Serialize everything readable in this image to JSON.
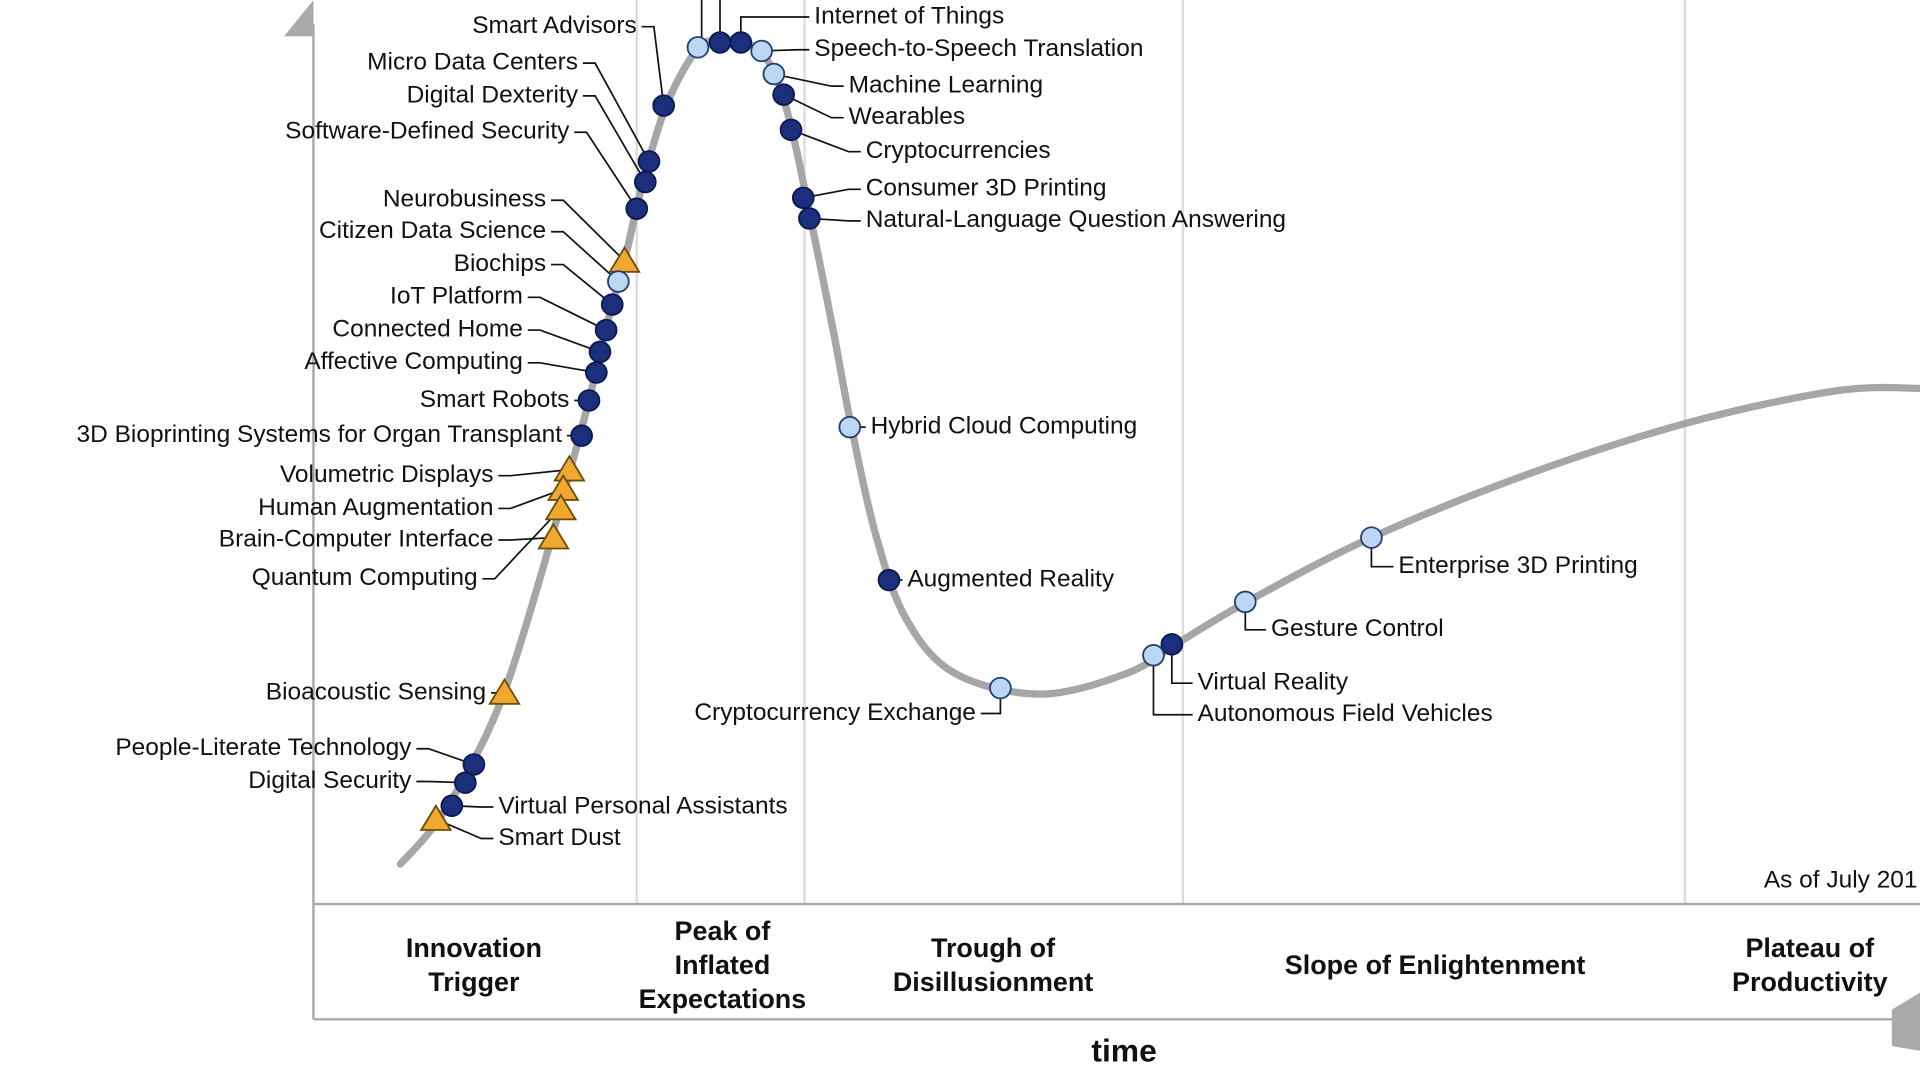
{
  "items": [
    {
      "label": "Internet of Things"
    },
    {
      "label": "Speech-to-Speech Translation"
    },
    {
      "label": "Machine Learning"
    },
    {
      "label": "Wearables"
    },
    {
      "label": "Cryptocurrencies"
    },
    {
      "label": "Consumer 3D Printing"
    },
    {
      "label": "Natural-Language Question Answering"
    },
    {
      "label": "Hybrid Cloud Computing"
    },
    {
      "label": "Augmented Reality"
    },
    {
      "label": "Cryptocurrency Exchange"
    },
    {
      "label": "Virtual Reality"
    },
    {
      "label": "Autonomous Field Vehicles"
    },
    {
      "label": "Gesture Control"
    },
    {
      "label": "Enterprise 3D Printing"
    },
    {
      "label": "Virtual Personal Assistants"
    },
    {
      "label": "Smart Dust"
    },
    {
      "label": "Smart Advisors"
    },
    {
      "label": "Micro Data Centers"
    },
    {
      "label": "Digital Dexterity"
    },
    {
      "label": "Software-Defined Security"
    },
    {
      "label": "Neurobusiness"
    },
    {
      "label": "Citizen Data Science"
    },
    {
      "label": "Biochips"
    },
    {
      "label": "IoT Platform"
    },
    {
      "label": "Connected Home"
    },
    {
      "label": "Affective Computing"
    },
    {
      "label": "Smart Robots"
    },
    {
      "label": "3D Bioprinting Systems for Organ Transplant"
    },
    {
      "label": "Volumetric Displays"
    },
    {
      "label": "Human Augmentation"
    },
    {
      "label": "Brain-Computer Interface"
    },
    {
      "label": "Quantum Computing"
    },
    {
      "label": "Bioacoustic Sensing"
    },
    {
      "label": "People-Literate Technology"
    },
    {
      "label": "Digital Security"
    }
  ],
  "phases": [
    {
      "lines": [
        "Innovation",
        "Trigger"
      ]
    },
    {
      "lines": [
        "Peak of",
        "Inflated",
        "Expectations"
      ]
    },
    {
      "lines": [
        "Trough of",
        "Disillusionment"
      ]
    },
    {
      "lines": [
        "Slope of Enlightenment"
      ]
    },
    {
      "lines": [
        "Plateau of",
        "Productivity"
      ]
    }
  ],
  "note": "As of July 201",
  "x_axis_label": "time"
}
